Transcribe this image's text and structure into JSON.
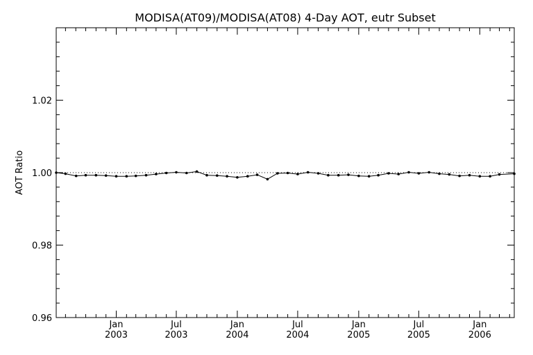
{
  "chart_data": {
    "type": "line",
    "title": "MODISA(AT09)/MODISA(AT08) 4-Day AOT, eutr Subset",
    "xlabel": "",
    "ylabel": "AOT Ratio",
    "ylim": [
      0.96,
      1.04
    ],
    "xlim": [
      "2002-07-04",
      "2006-04-15"
    ],
    "y_ticks": [
      {
        "value": 0.96,
        "label": "0.96"
      },
      {
        "value": 0.98,
        "label": "0.98"
      },
      {
        "value": 1.0,
        "label": "1.00"
      },
      {
        "value": 1.02,
        "label": "1.02"
      }
    ],
    "x_ticks": [
      {
        "date": "2003-01-01",
        "month": "Jan",
        "year": "2003"
      },
      {
        "date": "2003-07-01",
        "month": "Jul",
        "year": "2003"
      },
      {
        "date": "2004-01-01",
        "month": "Jan",
        "year": "2004"
      },
      {
        "date": "2004-07-01",
        "month": "Jul",
        "year": "2004"
      },
      {
        "date": "2005-01-01",
        "month": "Jan",
        "year": "2005"
      },
      {
        "date": "2005-07-01",
        "month": "Jul",
        "year": "2005"
      },
      {
        "date": "2006-01-01",
        "month": "Jan",
        "year": "2006"
      }
    ],
    "reference_line": {
      "value": 1.0,
      "style": "dotted"
    },
    "grid": false,
    "series": [
      {
        "x": [
          "2002-07-04",
          "2002-08-01",
          "2002-09-02",
          "2002-10-01",
          "2002-11-01",
          "2002-12-01",
          "2003-01-01",
          "2003-02-01",
          "2003-03-01",
          "2003-04-01",
          "2003-05-01",
          "2003-06-01",
          "2003-07-01",
          "2003-08-01",
          "2003-09-01",
          "2003-10-01",
          "2003-11-01",
          "2003-12-01",
          "2004-01-01",
          "2004-02-01",
          "2004-03-01",
          "2004-04-01",
          "2004-05-01",
          "2004-06-01",
          "2004-07-01",
          "2004-08-01",
          "2004-09-01",
          "2004-10-01",
          "2004-11-01",
          "2004-12-01",
          "2005-01-01",
          "2005-02-01",
          "2005-03-01",
          "2005-04-01",
          "2005-05-01",
          "2005-06-01",
          "2005-07-01",
          "2005-08-01",
          "2005-09-01",
          "2005-10-01",
          "2005-11-01",
          "2005-12-01",
          "2006-01-01",
          "2006-02-01",
          "2006-03-01",
          "2006-04-15"
        ],
        "y": [
          1.0,
          0.9997,
          0.9991,
          0.9993,
          0.9993,
          0.9992,
          0.999,
          0.999,
          0.9991,
          0.9993,
          0.9996,
          0.9999,
          1.0001,
          0.9999,
          1.0003,
          0.9993,
          0.9992,
          0.999,
          0.9987,
          0.999,
          0.9994,
          0.9982,
          0.9998,
          0.9999,
          0.9996,
          1.0001,
          0.9998,
          0.9993,
          0.9993,
          0.9994,
          0.9991,
          0.999,
          0.9993,
          0.9998,
          0.9996,
          1.0001,
          0.9998,
          1.0001,
          0.9997,
          0.9995,
          0.9991,
          0.9993,
          0.999,
          0.999,
          0.9995,
          0.9997
        ]
      }
    ]
  }
}
